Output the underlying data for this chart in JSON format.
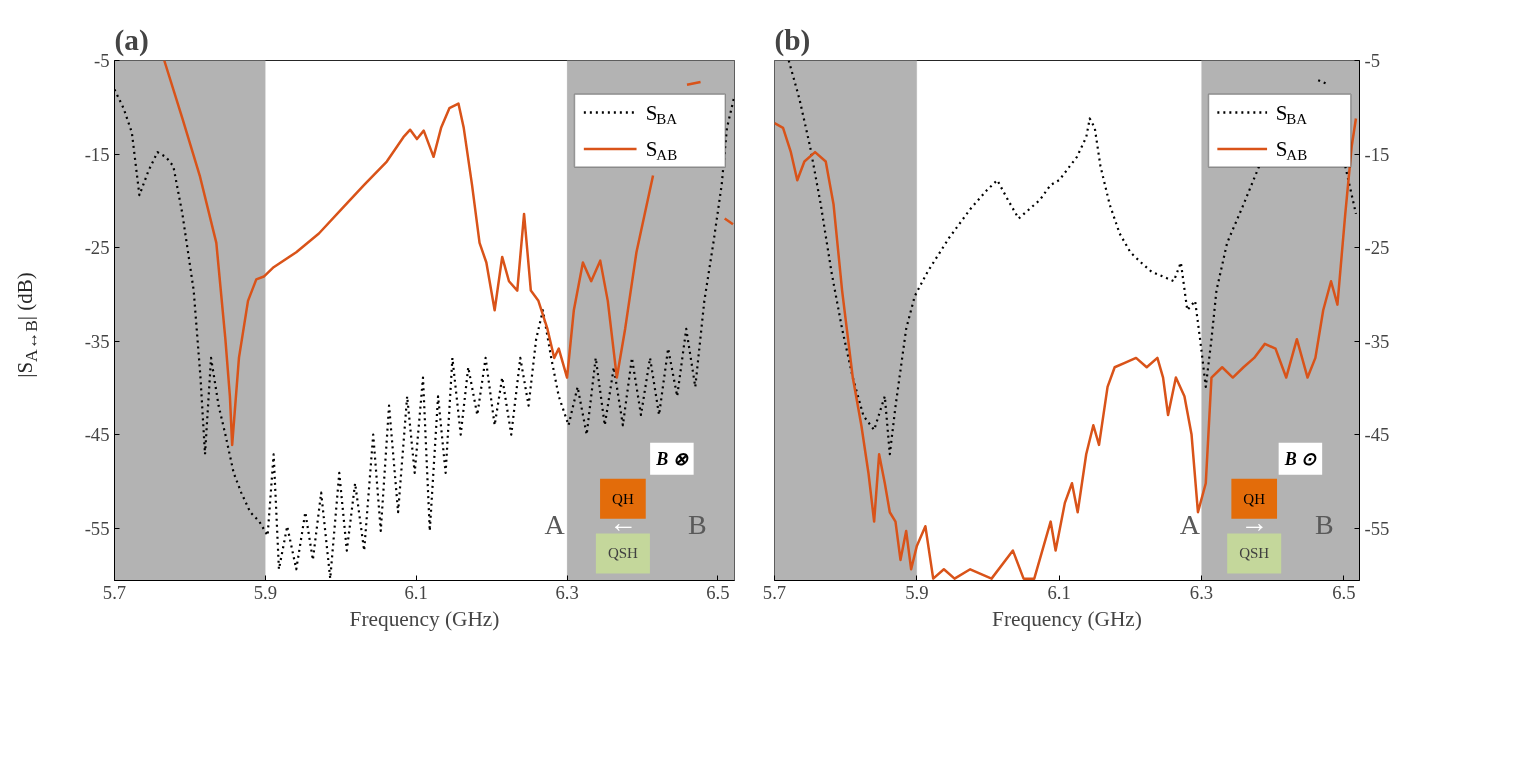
{
  "chart_data": [
    {
      "type": "line",
      "title": "(a)",
      "xlabel": "Frequency (GHz)",
      "ylabel": "|S$_{A↔B}$| (dB)",
      "xlim": [
        5.7,
        6.522
      ],
      "xticks": [
        5.7,
        5.9,
        6.1,
        6.3,
        6.5
      ],
      "ylim": [
        -60.6,
        -5
      ],
      "yticks": [
        -5,
        -15,
        -25,
        -35,
        -45,
        -55
      ],
      "grid": false,
      "legend": "top right",
      "marker": "none",
      "bands": [
        {
          "axis": "x",
          "from": 5.7,
          "to": 5.9,
          "color": "#b3b3b3"
        },
        {
          "axis": "x",
          "from": 6.3,
          "to": 6.522,
          "color": "#b3b3b3"
        }
      ],
      "annotations": [
        "B ⊗",
        "QH",
        "A",
        "←",
        "B",
        "QSH"
      ],
      "series": [
        {
          "name": "S$_{BA}$",
          "color": "#000000",
          "line_style": "dotted",
          "x": [
            5.7,
            5.712,
            5.723,
            5.733,
            5.745,
            5.757,
            5.768,
            5.778,
            5.79,
            5.805,
            5.814,
            5.82,
            5.828,
            5.838,
            5.847,
            5.858,
            5.868,
            5.88,
            5.892,
            5.903,
            5.911,
            5.918,
            5.929,
            5.941,
            5.953,
            5.963,
            5.974,
            5.986,
            5.998,
            6.008,
            6.019,
            6.031,
            6.043,
            6.053,
            6.064,
            6.076,
            6.088,
            6.098,
            6.109,
            6.118,
            6.129,
            6.139,
            6.148,
            6.159,
            6.169,
            6.181,
            6.192,
            6.204,
            6.214,
            6.226,
            6.238,
            6.249,
            6.259,
            6.268,
            6.279,
            6.289,
            6.302,
            6.314,
            6.326,
            6.338,
            6.35,
            6.362,
            6.374,
            6.386,
            6.398,
            6.41,
            6.422,
            6.434,
            6.446,
            6.458,
            6.47,
            6.482,
            6.494,
            6.505,
            6.512,
            6.521
          ],
          "values": [
            -8.1,
            -10.1,
            -12.7,
            -19.4,
            -16.8,
            -14.8,
            -15.3,
            -16.3,
            -21.4,
            -29.6,
            -38.9,
            -47.1,
            -36.8,
            -41.9,
            -45.0,
            -49.1,
            -51.2,
            -53.3,
            -54.3,
            -55.8,
            -47.1,
            -59.4,
            -54.8,
            -59.4,
            -53.3,
            -58.4,
            -51.2,
            -60.4,
            -49.1,
            -57.4,
            -50.2,
            -57.4,
            -45.0,
            -55.3,
            -41.9,
            -53.3,
            -40.9,
            -49.1,
            -38.9,
            -55.3,
            -40.9,
            -49.1,
            -36.8,
            -45.0,
            -37.8,
            -42.9,
            -36.8,
            -44.0,
            -38.9,
            -45.0,
            -36.8,
            -41.9,
            -34.8,
            -31.7,
            -36.8,
            -40.9,
            -44.0,
            -39.9,
            -45.0,
            -36.8,
            -44.0,
            -37.8,
            -44.0,
            -36.8,
            -42.9,
            -36.8,
            -42.9,
            -35.8,
            -40.9,
            -33.7,
            -39.9,
            -30.7,
            -24.5,
            -18.3,
            -12.2,
            -9.1
          ]
        },
        {
          "name": "S$_{AB}$",
          "color": "#d95319",
          "line_style": "solid",
          "x": [
            5.766,
            5.79,
            5.813,
            5.835,
            5.847,
            5.853,
            5.856,
            5.865,
            5.877,
            5.888,
            5.898,
            5.911,
            5.941,
            5.971,
            6.001,
            6.031,
            6.061,
            6.083,
            6.092,
            6.101,
            6.11,
            6.123,
            6.133,
            6.144,
            6.156,
            6.163,
            6.174,
            6.184,
            6.193,
            6.204,
            6.214,
            6.223,
            6.234,
            6.243,
            6.252,
            6.262,
            6.274,
            6.283,
            6.289,
            6.3,
            6.309,
            6.321,
            6.332,
            6.344,
            6.354,
            6.366,
            6.377,
            6.392,
            6.414,
            6.437,
            6.459,
            6.477,
            6.489,
            6.5,
            6.509,
            6.52
          ],
          "values": [
            -5,
            -11.2,
            -17.3,
            -24.5,
            -34.8,
            -40.9,
            -46.1,
            -36.8,
            -30.7,
            -28.4,
            -28.1,
            -27.1,
            -25.5,
            -23.5,
            -20.9,
            -18.3,
            -15.8,
            -13.2,
            -12.4,
            -13.4,
            -12.5,
            -15.3,
            -12.2,
            -10.1,
            -9.6,
            -12.2,
            -18.3,
            -24.5,
            -26.6,
            -31.7,
            -26.0,
            -28.6,
            -29.6,
            -21.4,
            -29.6,
            -30.7,
            -33.7,
            -36.8,
            -35.8,
            -38.9,
            -31.7,
            -26.6,
            -28.6,
            -26.4,
            -30.7,
            -38.9,
            -33.7,
            -25.5,
            -17.3,
            null,
            -7.6,
            -7.3,
            null,
            null,
            -21.9,
            -22.5
          ]
        }
      ]
    },
    {
      "type": "line",
      "title": "(b)",
      "xlabel": "Frequency (GHz)",
      "xlim": [
        5.7,
        6.522
      ],
      "xticks": [
        5.7,
        5.9,
        6.1,
        6.3,
        6.5
      ],
      "y2lim": [
        -60.6,
        -5
      ],
      "y2ticks": [
        -5,
        -15,
        -25,
        -35,
        -45,
        -55
      ],
      "grid": false,
      "legend": "top right",
      "marker": "none",
      "bands": [
        {
          "axis": "x",
          "from": 5.7,
          "to": 5.9,
          "color": "#b3b3b3"
        },
        {
          "axis": "x",
          "from": 6.3,
          "to": 6.522,
          "color": "#b3b3b3"
        }
      ],
      "annotations": [
        "B ⊙",
        "QH",
        "A",
        "→",
        "B",
        "QSH"
      ],
      "series": [
        {
          "name": "S$_{BA}$",
          "color": "#000000",
          "line_style": "dotted",
          "axis": "y2",
          "x": [
            5.72,
            5.735,
            5.75,
            5.765,
            5.78,
            5.795,
            5.81,
            5.825,
            5.84,
            5.855,
            5.862,
            5.87,
            5.885,
            5.897,
            5.915,
            5.945,
            5.975,
            5.998,
            6.013,
            6.028,
            6.043,
            6.058,
            6.073,
            6.088,
            6.1,
            6.115,
            6.125,
            6.138,
            6.143,
            6.15,
            6.158,
            6.171,
            6.185,
            6.2,
            6.215,
            6.23,
            6.246,
            6.261,
            6.271,
            6.28,
            6.291,
            6.298,
            6.306,
            6.314,
            6.321,
            6.336,
            6.359,
            6.381,
            6.404,
            6.426,
            6.449,
            6.464,
            6.479,
            6.491,
            6.502,
            6.517
          ],
          "values": [
            -5,
            -9.1,
            -14.2,
            -20.4,
            -27.6,
            -33.7,
            -38.9,
            -43.0,
            -44.5,
            -40.9,
            -47.1,
            -42.0,
            -33.7,
            -30.2,
            -27.6,
            -24.0,
            -20.9,
            -18.9,
            -17.8,
            -19.9,
            -21.9,
            -20.9,
            -19.9,
            -18.3,
            -17.8,
            -16.3,
            -15.3,
            -13.2,
            -11.2,
            -12.2,
            -16.3,
            -20.4,
            -23.5,
            -25.5,
            -26.6,
            -27.6,
            -28.1,
            -28.6,
            -26.6,
            -31.7,
            -30.7,
            -34.8,
            -39.9,
            -34.8,
            -29.6,
            -24.5,
            -20.4,
            -16.3,
            null,
            null,
            null,
            -7.1,
            -7.6,
            null,
            -16.3,
            -21.4
          ]
        },
        {
          "name": "S$_{AB}$",
          "color": "#d95319",
          "line_style": "solid",
          "axis": "y2",
          "x": [
            5.7,
            5.712,
            5.723,
            5.732,
            5.742,
            5.757,
            5.772,
            5.783,
            5.795,
            5.81,
            5.822,
            5.832,
            5.84,
            5.847,
            5.855,
            5.862,
            5.87,
            5.877,
            5.885,
            5.892,
            5.9,
            5.912,
            5.923,
            5.938,
            5.953,
            5.975,
            6.005,
            6.035,
            6.05,
            6.065,
            6.088,
            6.095,
            6.108,
            6.118,
            6.126,
            6.138,
            6.148,
            6.156,
            6.168,
            6.178,
            6.193,
            6.208,
            6.223,
            6.238,
            6.246,
            6.253,
            6.264,
            6.276,
            6.286,
            6.295,
            6.306,
            6.314,
            6.329,
            6.344,
            6.359,
            6.374,
            6.389,
            6.404,
            6.419,
            6.434,
            6.449,
            6.46,
            6.471,
            6.482,
            6.491,
            6.502,
            6.511,
            6.517
          ],
          "values": [
            -11.7,
            -12.2,
            -14.8,
            -17.8,
            -15.8,
            -14.8,
            -15.8,
            -20.4,
            -29.6,
            -38.9,
            -44.0,
            -49.1,
            -54.3,
            -47.1,
            -50.2,
            -53.3,
            -54.3,
            -58.4,
            -55.3,
            -59.4,
            -56.9,
            -54.8,
            -60.4,
            -59.4,
            -60.4,
            -59.4,
            -60.4,
            -57.4,
            -60.4,
            -60.4,
            -54.3,
            -57.4,
            -52.3,
            -50.2,
            -53.3,
            -47.1,
            -44.0,
            -46.1,
            -39.9,
            -37.8,
            -37.3,
            -36.8,
            -37.8,
            -36.8,
            -38.9,
            -42.9,
            -38.9,
            -40.9,
            -45.0,
            -53.3,
            -50.2,
            -38.9,
            -37.8,
            -38.9,
            -37.8,
            -36.8,
            -35.3,
            -35.8,
            -38.9,
            -34.8,
            -38.9,
            -36.8,
            -31.7,
            -28.6,
            -31.1,
            -21.4,
            -14.2,
            -11.2
          ]
        }
      ]
    }
  ]
}
